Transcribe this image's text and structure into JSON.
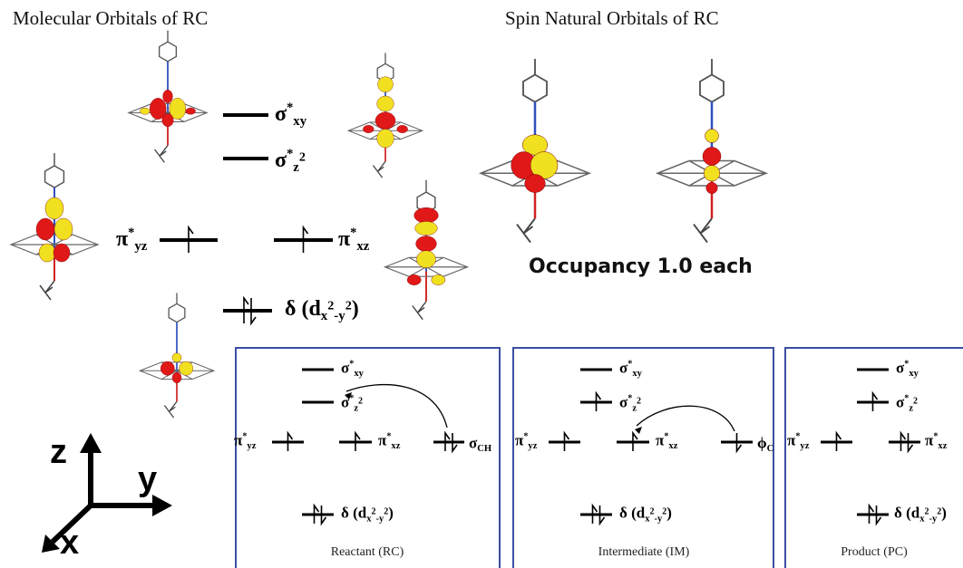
{
  "titles": {
    "molecular": "Molecular Orbitals of RC",
    "spin": "Spin Natural Orbitals of RC",
    "occupancy": "Occupancy 1.0 each"
  },
  "orbitals": {
    "sxy": {
      "main": "σ",
      "sup": "*",
      "sub": "xy"
    },
    "sz2": {
      "main": "σ",
      "sup": "*",
      "sub": "z",
      "subsup": "2"
    },
    "pyz": {
      "main": "π",
      "sup": "*",
      "sub": "yz"
    },
    "pxz": {
      "main": "π",
      "sup": "*",
      "sub": "xz"
    },
    "delta": {
      "main": "δ (d",
      "sub": "x",
      "subsup": "2",
      "sub2": "-y",
      "sub2sup": "2",
      "tail": ")"
    },
    "sch": {
      "main": "σ",
      "sub": "CH"
    },
    "phic": {
      "main": "ϕ",
      "sub": "C"
    }
  },
  "panels": [
    {
      "caption": "Reactant (RC)"
    },
    {
      "caption": "Intermediate (IM)"
    },
    {
      "caption": "Product (PC)"
    }
  ],
  "axes": {
    "z": "z",
    "y": "y",
    "x": "x"
  }
}
